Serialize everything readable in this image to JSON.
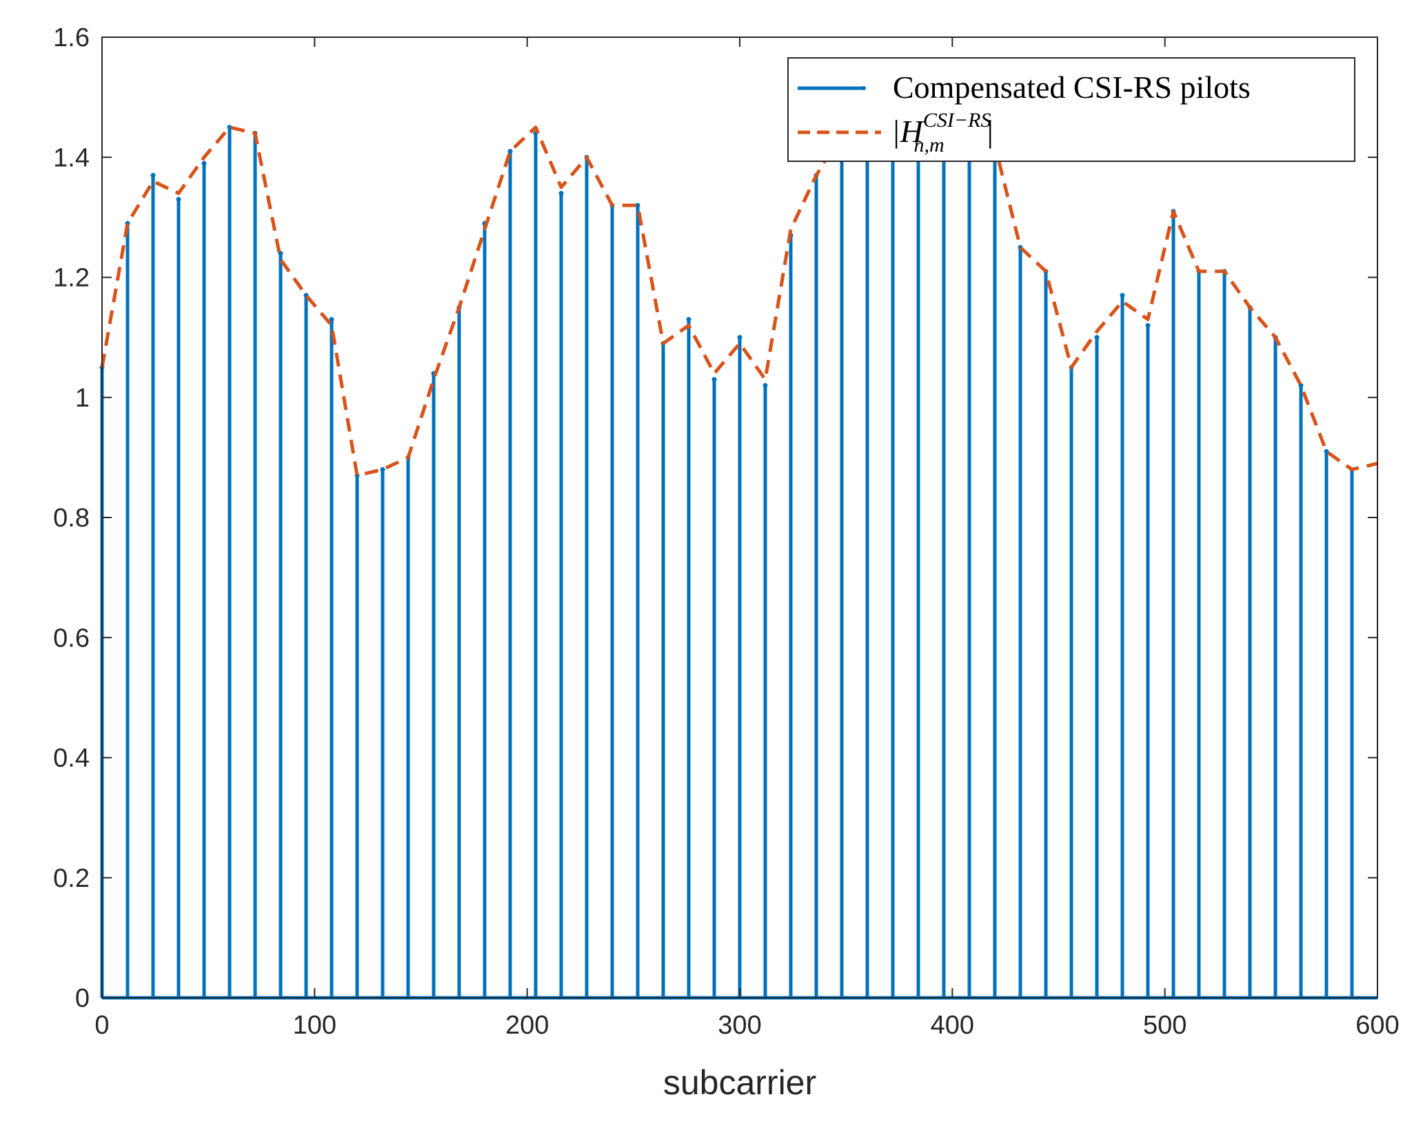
{
  "chart_data": {
    "type": "stem",
    "title": "",
    "xlabel": "subcarrier",
    "ylabel": "",
    "xlim": [
      0,
      600
    ],
    "ylim": [
      0,
      1.6
    ],
    "xticks": [
      0,
      100,
      200,
      300,
      400,
      500,
      600
    ],
    "xtick_labels": [
      "0",
      "100",
      "200",
      "300",
      "400",
      "500",
      "600"
    ],
    "yticks": [
      0,
      0.2,
      0.4,
      0.6,
      0.8,
      1.0,
      1.2,
      1.4,
      1.6
    ],
    "ytick_labels": [
      "0",
      "0.2",
      "0.4",
      "0.6",
      "0.8",
      "1",
      "1.2",
      "1.4",
      "1.6"
    ],
    "grid": false,
    "legend_position": "top-right",
    "colors": {
      "stem": "#0072BD",
      "line": "#D95319"
    },
    "legend": [
      {
        "label": "Compensated CSI-RS pilots",
        "style": "solid-stem"
      },
      {
        "label_base": "|H",
        "label_sup": "CSI−RS",
        "label_sub": "n,m",
        "label_end": "|",
        "style": "dashed"
      }
    ],
    "series": [
      {
        "name": "Compensated CSI-RS pilots",
        "type": "stem",
        "x": [
          0,
          12,
          24,
          36,
          48,
          60,
          72,
          84,
          96,
          108,
          120,
          132,
          144,
          156,
          168,
          180,
          192,
          204,
          216,
          228,
          240,
          252,
          264,
          276,
          288,
          300,
          312,
          324,
          336,
          348,
          360,
          372,
          384,
          396,
          408,
          420,
          432,
          444,
          456,
          468,
          480,
          492,
          504,
          516,
          528,
          540,
          552,
          564,
          576,
          588
        ],
        "y": [
          1.05,
          1.29,
          1.37,
          1.33,
          1.39,
          1.45,
          1.44,
          1.24,
          1.17,
          1.13,
          0.87,
          0.88,
          0.9,
          1.04,
          1.15,
          1.29,
          1.41,
          1.44,
          1.34,
          1.4,
          1.32,
          1.32,
          1.09,
          1.13,
          1.03,
          1.1,
          1.02,
          1.27,
          1.37,
          1.44,
          1.47,
          1.48,
          1.48,
          1.47,
          1.45,
          1.42,
          1.25,
          1.21,
          1.05,
          1.1,
          1.17,
          1.12,
          1.31,
          1.21,
          1.21,
          1.15,
          1.1,
          1.02,
          0.91,
          0.88
        ]
      },
      {
        "name": "|H_{n,m}^{CSI-RS}|",
        "type": "line",
        "x": [
          0,
          12,
          24,
          36,
          48,
          60,
          72,
          84,
          96,
          108,
          120,
          132,
          144,
          156,
          168,
          180,
          192,
          204,
          216,
          228,
          240,
          252,
          264,
          276,
          288,
          300,
          312,
          324,
          336,
          348,
          360,
          372,
          384,
          396,
          408,
          420,
          432,
          444,
          456,
          468,
          480,
          492,
          504,
          516,
          528,
          540,
          552,
          564,
          576,
          588,
          600
        ],
        "y": [
          1.05,
          1.29,
          1.36,
          1.34,
          1.4,
          1.45,
          1.44,
          1.23,
          1.17,
          1.12,
          0.87,
          0.88,
          0.9,
          1.03,
          1.15,
          1.28,
          1.41,
          1.45,
          1.35,
          1.4,
          1.32,
          1.32,
          1.09,
          1.12,
          1.04,
          1.09,
          1.03,
          1.28,
          1.37,
          1.44,
          1.47,
          1.48,
          1.48,
          1.47,
          1.45,
          1.42,
          1.25,
          1.21,
          1.05,
          1.11,
          1.16,
          1.13,
          1.31,
          1.21,
          1.21,
          1.15,
          1.1,
          1.02,
          0.91,
          0.88,
          0.89
        ]
      }
    ]
  }
}
